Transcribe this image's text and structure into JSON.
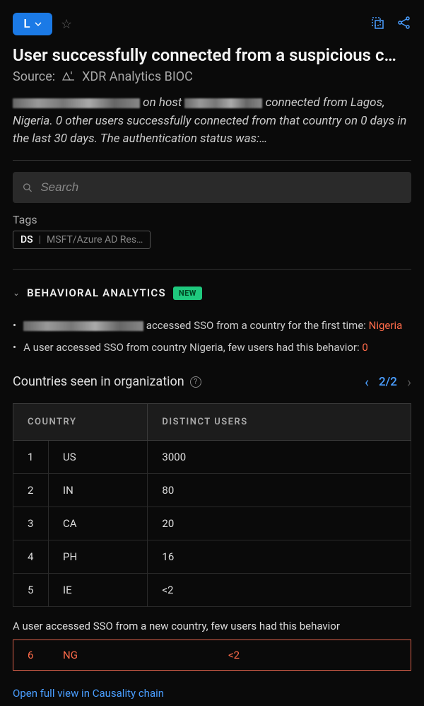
{
  "topbar": {
    "badge": "L"
  },
  "header": {
    "title": "User successfully connected from a suspicious c…",
    "source_label": "Source:",
    "source_value": "XDR Analytics BIOC",
    "desc_mid": " on host ",
    "desc_rest": " connected from Lagos, Nigeria. 0 other users successfully connected from that country on 0 days in the last 30 days. The authentication status was:…"
  },
  "search": {
    "placeholder": "Search"
  },
  "tags": {
    "label": "Tags",
    "primary": "DS",
    "sep": "|",
    "rest": "MSFT/Azure AD Res…"
  },
  "section": {
    "title": "BEHAVIORAL ANALYTICS",
    "badge": "NEW"
  },
  "bullets": {
    "b1_text": " accessed SSO from a country for the first time: ",
    "b1_highlight": "Nigeria",
    "b2_text": "A user accessed SSO from country Nigeria, few users had this behavior: ",
    "b2_highlight": "0"
  },
  "table": {
    "title": "Countries seen in organization",
    "pager": "2/2",
    "col1": "COUNTRY",
    "col2": "DISTINCT USERS",
    "rows": [
      {
        "n": "1",
        "country": "US",
        "users": "3000"
      },
      {
        "n": "2",
        "country": "IN",
        "users": "80"
      },
      {
        "n": "3",
        "country": "CA",
        "users": "20"
      },
      {
        "n": "4",
        "country": "PH",
        "users": "16"
      },
      {
        "n": "5",
        "country": "IE",
        "users": "<2"
      }
    ]
  },
  "highlight": {
    "caption": "A user accessed SSO from a new country, few users had this behavior",
    "n": "6",
    "country": "NG",
    "users": "<2"
  },
  "footer": {
    "link": "Open full view in Causality chain"
  }
}
